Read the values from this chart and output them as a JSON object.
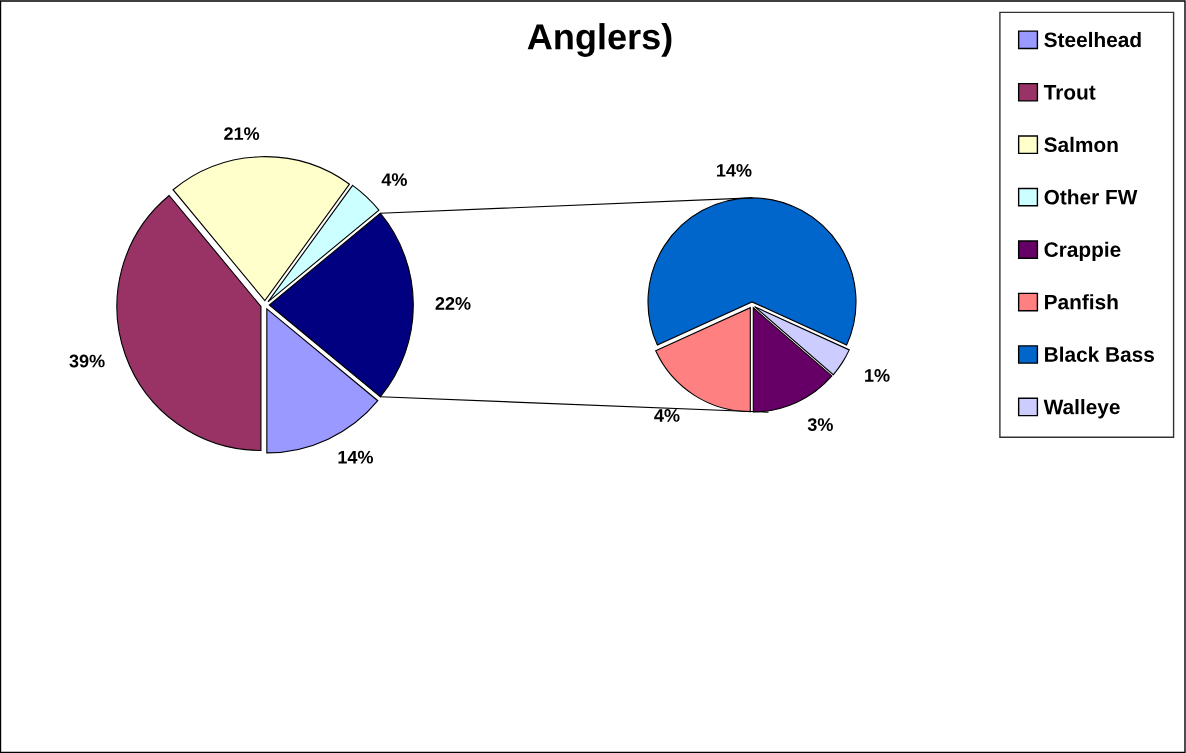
{
  "chart_data": [
    {
      "type": "pie",
      "title": "Anglers)",
      "legend": "right",
      "categories": [
        "Steelhead",
        "Trout",
        "Salmon",
        "Other FW",
        null
      ],
      "values": [
        14,
        39,
        21,
        4,
        22
      ],
      "colors": [
        "#9999ff",
        "#993366",
        "#ffffcc",
        "#ccffff",
        "#000080"
      ],
      "value_labels": [
        "14%",
        "39%",
        "21%",
        "4%",
        "22%"
      ]
    },
    {
      "type": "pie",
      "legend": "right",
      "categories": [
        "Crappie",
        "Panfish",
        "Black Bass",
        "Walleye"
      ],
      "values": [
        3,
        4,
        14,
        1
      ],
      "colors": [
        "#660066",
        "#ff8080",
        "#0066cc",
        "#ccccff"
      ],
      "value_labels": [
        "3%",
        "4%",
        "14%",
        "1%"
      ]
    }
  ]
}
